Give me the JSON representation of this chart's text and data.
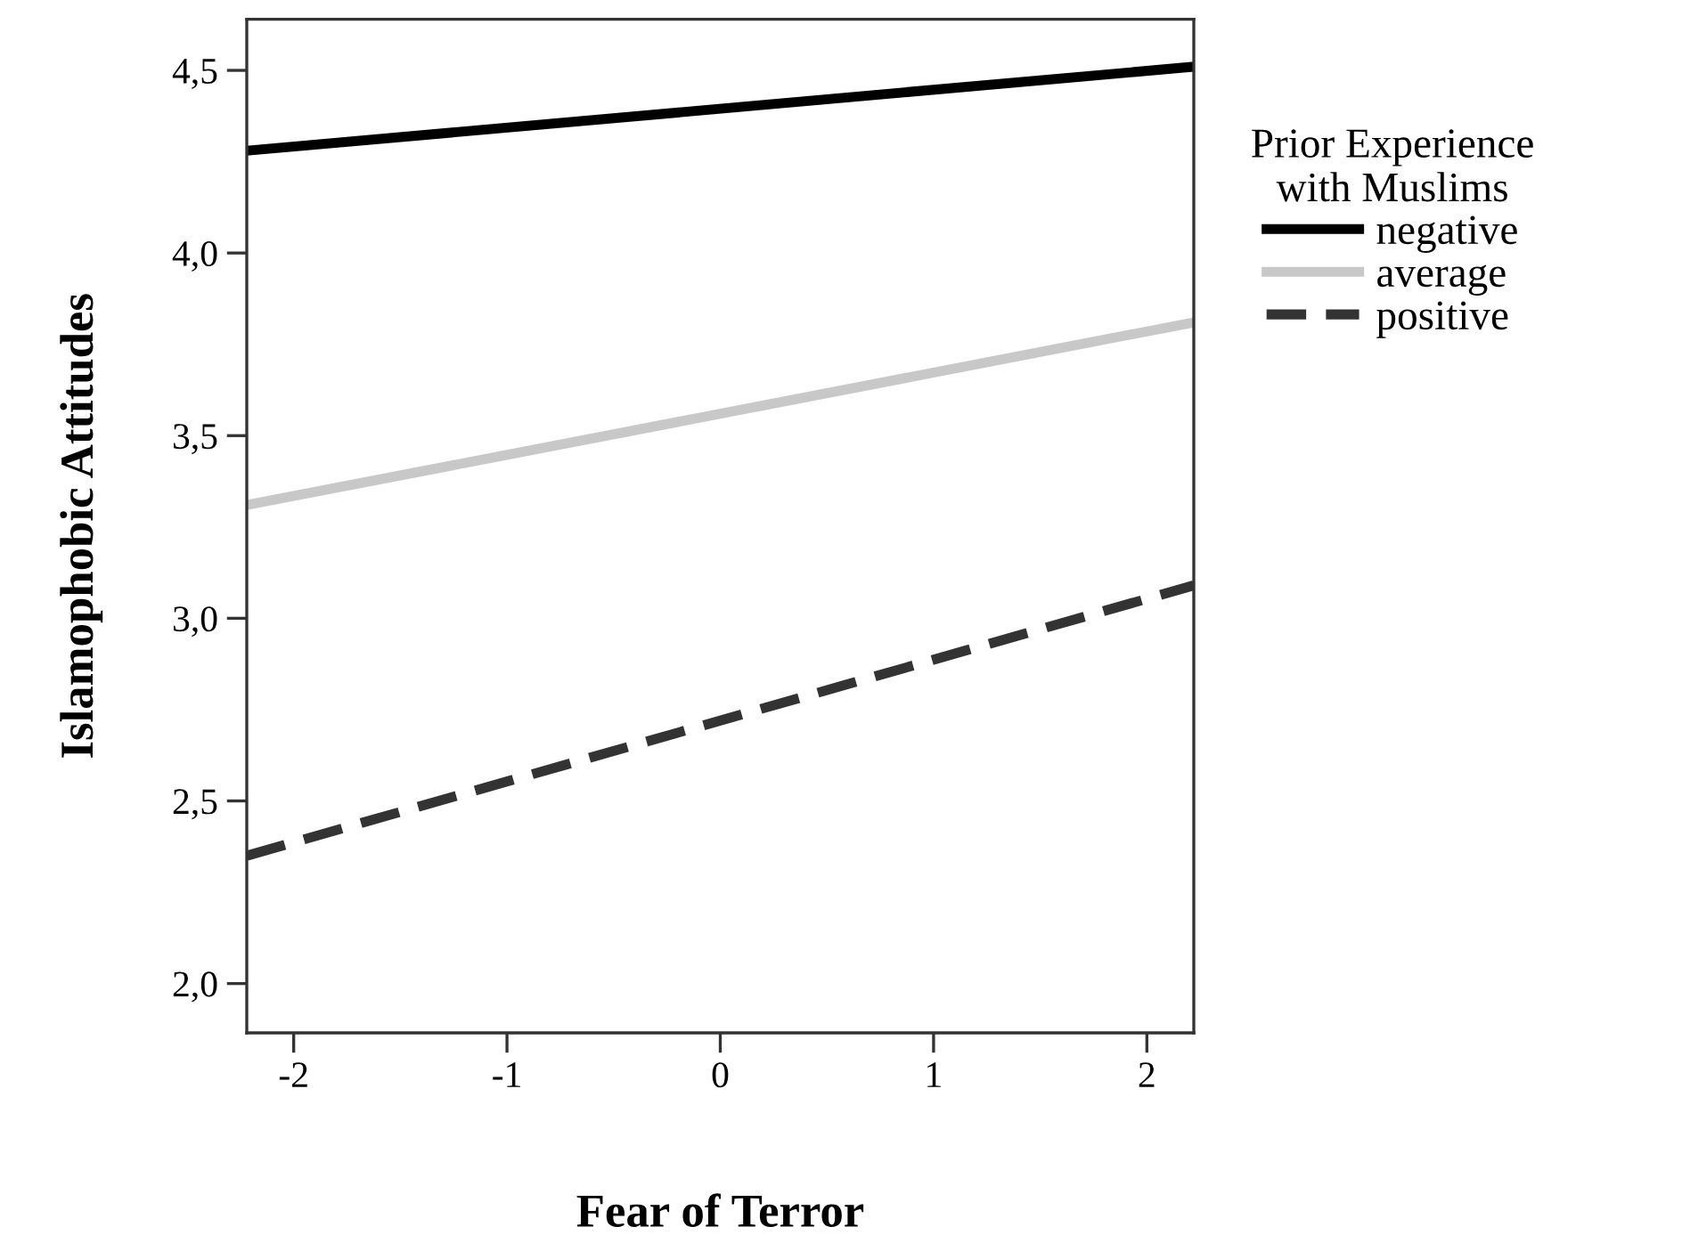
{
  "chart_data": {
    "type": "line",
    "xlabel": "Fear of Terror",
    "ylabel": "Islamophobic Attitudes",
    "legend_title": "Prior Experience\nwith Muslims",
    "legend": "right",
    "x": [
      -2.22,
      2.22
    ],
    "series": [
      {
        "name": "negative",
        "color": "#000000",
        "values": [
          4.28,
          4.51
        ],
        "line_style": "solid"
      },
      {
        "name": "average",
        "color": "#c8c8c8",
        "values": [
          3.31,
          3.81
        ],
        "line_style": "solid"
      },
      {
        "name": "positive",
        "color": "#333333",
        "values": [
          2.35,
          3.09
        ],
        "line_style": "dashed"
      }
    ],
    "xlim": [
      -2.22,
      2.22
    ],
    "ylim": [
      1.865,
      4.64
    ],
    "xticks": [
      -2,
      -1,
      0,
      1,
      2
    ],
    "yticks": [
      {
        "value": 2.0,
        "label": "2,0"
      },
      {
        "value": 2.5,
        "label": "2,5"
      },
      {
        "value": 3.0,
        "label": "3,0"
      },
      {
        "value": 3.5,
        "label": "3,5"
      },
      {
        "value": 4.0,
        "label": "4,0"
      },
      {
        "value": 4.5,
        "label": "4,5"
      }
    ],
    "grid": false,
    "marker": "none"
  }
}
